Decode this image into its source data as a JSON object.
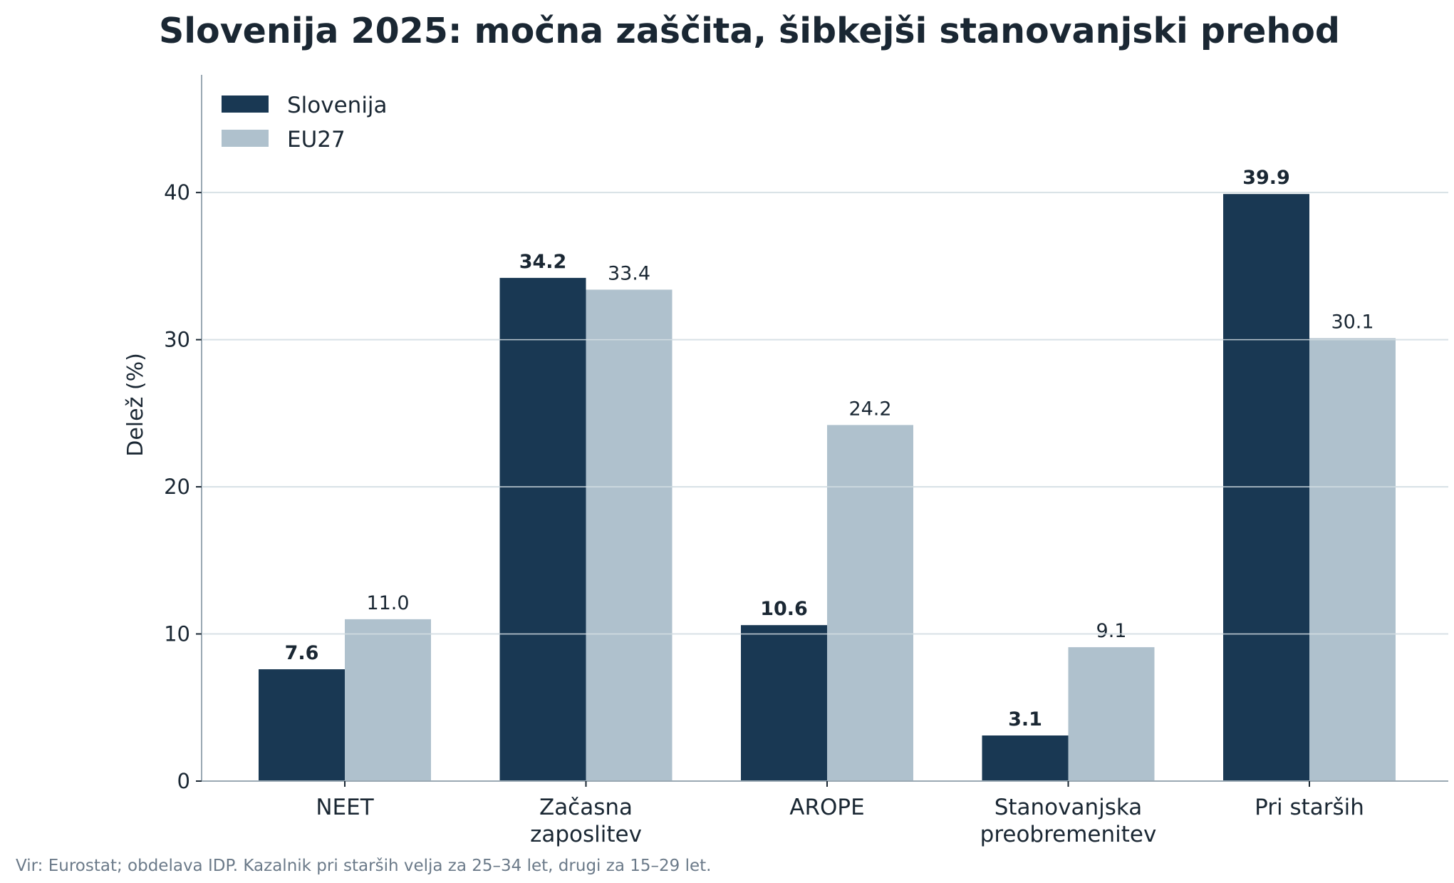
{
  "chart_data": {
    "type": "bar",
    "title": "Slovenija 2025: močna zaščita, šibkejši stanovanjski prehod",
    "ylabel": "Delež (%)",
    "xlabel": "",
    "ylim": [
      0,
      48
    ],
    "yticks": [
      0,
      10,
      20,
      30,
      40
    ],
    "grid": "horizontal",
    "legend_position": "top-left",
    "categories": [
      [
        "NEET"
      ],
      [
        "Začasna",
        "zaposlitev"
      ],
      [
        "AROPE"
      ],
      [
        "Stanovanjska",
        "preobremenitev"
      ],
      [
        "Pri starših"
      ]
    ],
    "series": [
      {
        "name": "Slovenija",
        "color": "#193853",
        "values": [
          7.6,
          34.2,
          10.6,
          3.1,
          39.9
        ],
        "labels": [
          "7.6",
          "34.2",
          "10.6",
          "3.1",
          "39.9"
        ]
      },
      {
        "name": "EU27",
        "color": "#afc1cd",
        "values": [
          11.0,
          33.4,
          24.2,
          9.1,
          30.1
        ],
        "labels": [
          "11.0",
          "33.4",
          "24.2",
          "9.1",
          "30.1"
        ]
      }
    ],
    "note": "Vir: Eurostat; obdelava IDP. Kazalnik pri starših velja za 25–34 let, drugi za 15–29 let."
  }
}
